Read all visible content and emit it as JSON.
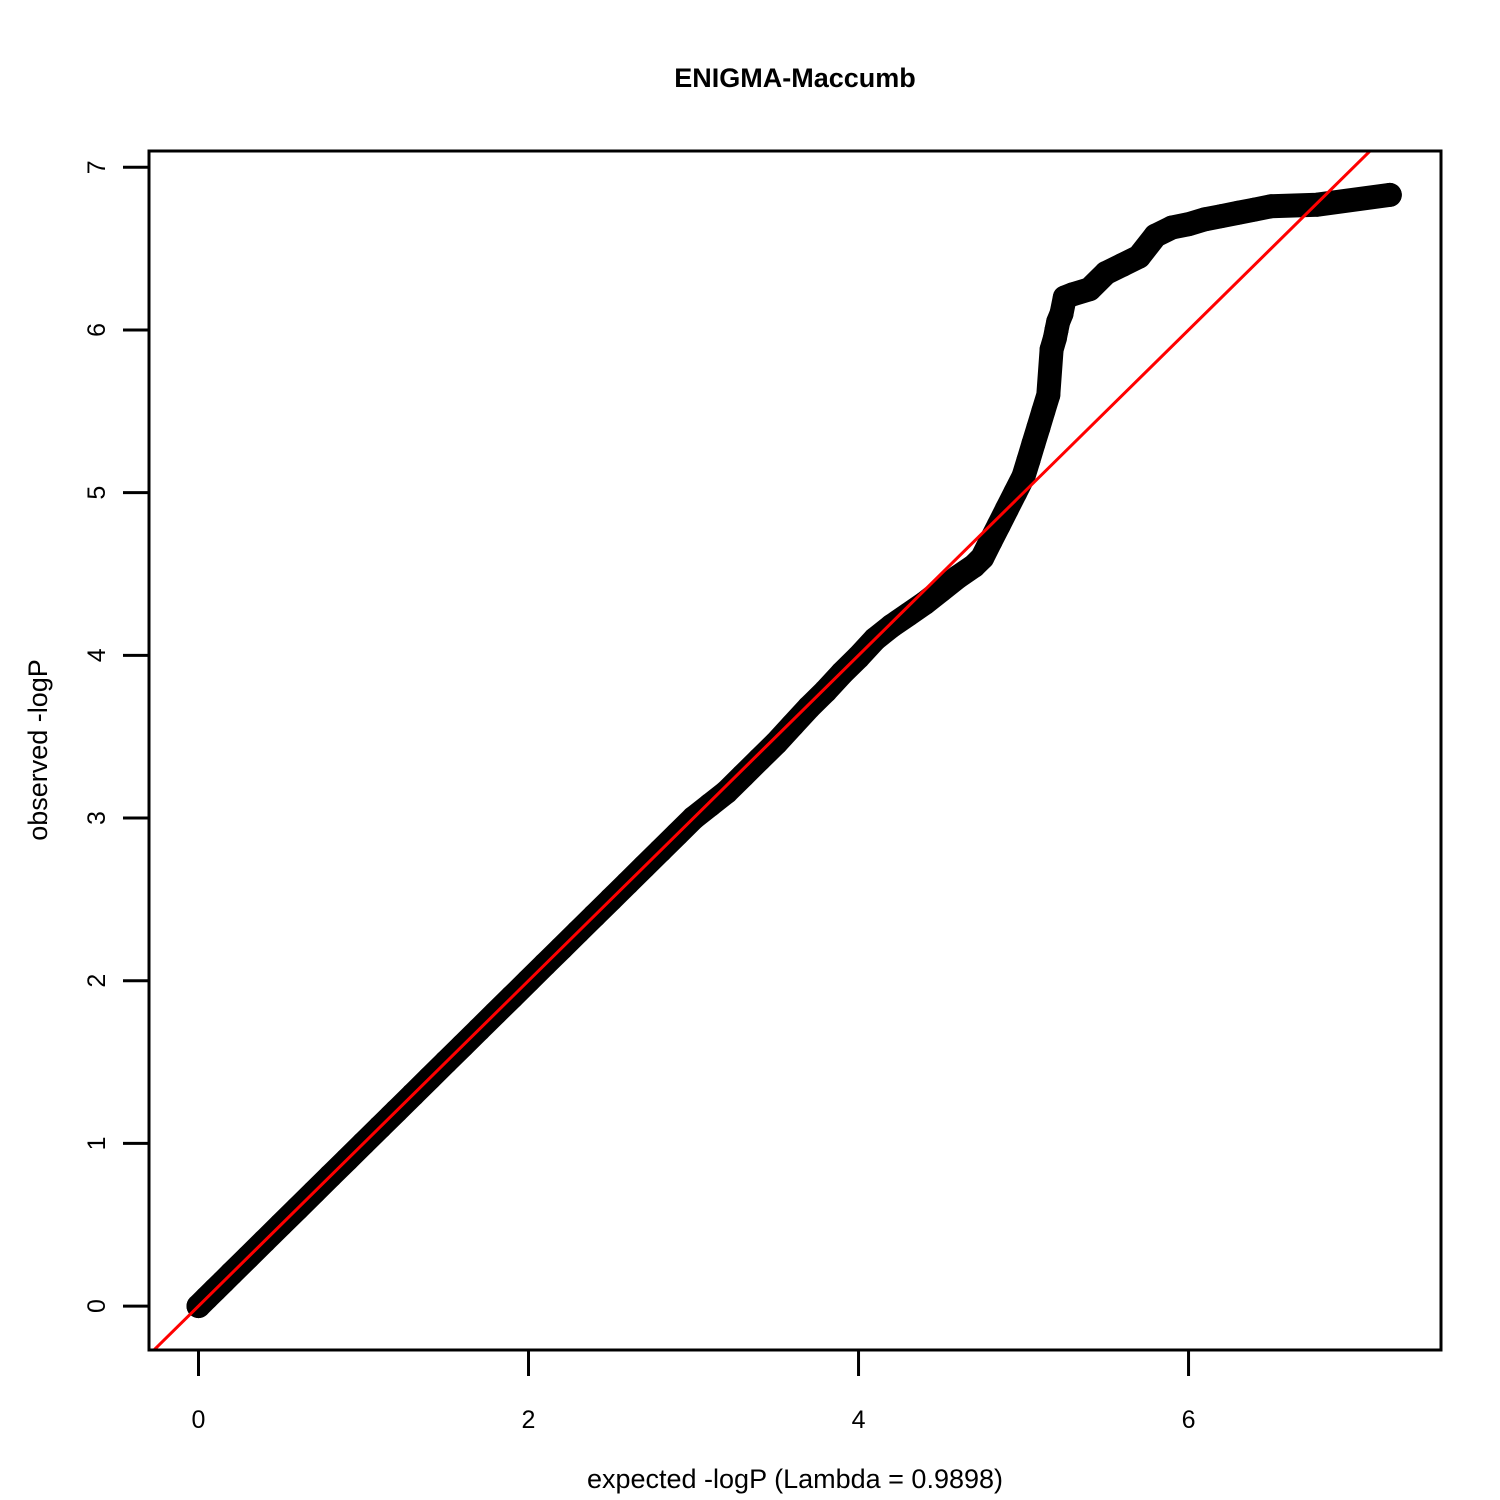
{
  "chart_data": {
    "type": "scatter",
    "title": "ENIGMA-Maccumb",
    "xlabel": "expected -logP  (Lambda = 0.9898)",
    "ylabel": "observed -logP",
    "xlim": [
      -0.3,
      7.53
    ],
    "ylim": [
      -0.27,
      7.1
    ],
    "x_ticks": [
      "0",
      "2",
      "4",
      "6"
    ],
    "y_ticks": [
      "0",
      "1",
      "2",
      "3",
      "4",
      "5",
      "6",
      "7"
    ],
    "grid": false,
    "point_color": "#000000",
    "reference_line": {
      "slope": 1,
      "intercept": 0,
      "color": "#ff0000"
    },
    "points": {
      "x": [
        0.0,
        0.05,
        0.1,
        0.15,
        0.2,
        0.3,
        0.4,
        0.5,
        0.6,
        0.7,
        0.8,
        0.9,
        1.0,
        1.1,
        1.2,
        1.3,
        1.4,
        1.5,
        1.6,
        1.7,
        1.8,
        1.9,
        2.0,
        2.1,
        2.2,
        2.3,
        2.4,
        2.5,
        2.6,
        2.7,
        2.8,
        2.9,
        3.0,
        3.1,
        3.2,
        3.3,
        3.4,
        3.5,
        3.6,
        3.7,
        3.8,
        3.9,
        4.0,
        4.1,
        4.2,
        4.3,
        4.4,
        4.5,
        4.6,
        4.7,
        4.75,
        4.8,
        4.85,
        4.9,
        4.95,
        5.0,
        5.03,
        5.06,
        5.09,
        5.12,
        5.15,
        5.17,
        5.19,
        5.2,
        5.21,
        5.23,
        5.25,
        5.3,
        5.4,
        5.5,
        5.6,
        5.7,
        5.8,
        5.9,
        6.0,
        6.1,
        6.2,
        6.3,
        6.4,
        6.5,
        6.78,
        7.22
      ],
      "y": [
        0.0,
        0.05,
        0.1,
        0.15,
        0.2,
        0.3,
        0.4,
        0.5,
        0.6,
        0.7,
        0.8,
        0.9,
        1.0,
        1.1,
        1.2,
        1.3,
        1.4,
        1.5,
        1.6,
        1.7,
        1.8,
        1.9,
        2.0,
        2.1,
        2.2,
        2.3,
        2.4,
        2.5,
        2.6,
        2.7,
        2.8,
        2.9,
        3.0,
        3.08,
        3.16,
        3.26,
        3.36,
        3.46,
        3.57,
        3.68,
        3.78,
        3.89,
        3.99,
        4.1,
        4.18,
        4.25,
        4.32,
        4.4,
        4.48,
        4.55,
        4.6,
        4.7,
        4.8,
        4.9,
        5.0,
        5.1,
        5.2,
        5.3,
        5.4,
        5.5,
        5.6,
        5.88,
        5.95,
        6.0,
        6.05,
        6.1,
        6.2,
        6.22,
        6.25,
        6.35,
        6.4,
        6.45,
        6.58,
        6.63,
        6.65,
        6.68,
        6.7,
        6.72,
        6.74,
        6.76,
        6.77,
        6.83
      ]
    }
  }
}
